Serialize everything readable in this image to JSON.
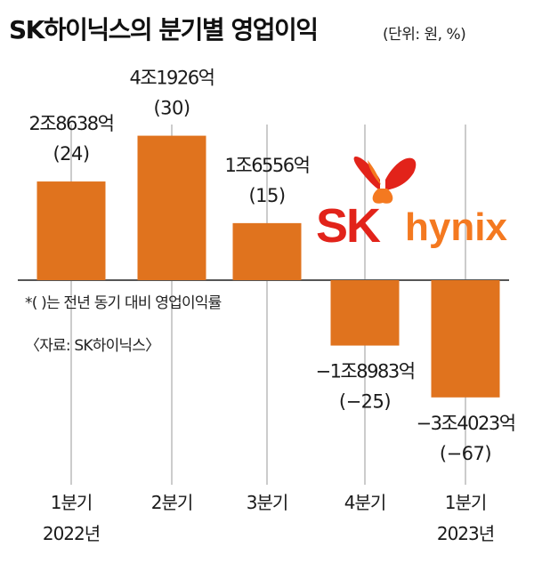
{
  "header": {
    "title": "SK하이닉스의 분기별 영업이익",
    "unit": "(단위: 원, %)"
  },
  "notes": {
    "footnote": "*(  )는 전년 동기 대비 영업이익률",
    "source": "〈자료: SK하이닉스〉"
  },
  "logo": {
    "text_sk": "SK",
    "text_hynix": "hynix",
    "colors": {
      "red": "#e2231a",
      "orange": "#f47920",
      "hynix_text": "#f47920"
    }
  },
  "colors": {
    "bar": "#e0731e",
    "axis": "#555555",
    "gridline": "#bbbbbb"
  },
  "chart_data": {
    "type": "bar",
    "title": "SK하이닉스의 분기별 영업이익",
    "unit": "원, %",
    "categories": [
      "1분기",
      "2분기",
      "3분기",
      "4분기",
      "1분기"
    ],
    "year_labels": [
      "2022년",
      "",
      "",
      "",
      "2023년"
    ],
    "values": [
      28638,
      41926,
      16556,
      -18983,
      -34023
    ],
    "value_labels": [
      "2조8638억",
      "4조1926억",
      "1조6556억",
      "−1조8983억",
      "−3조4023억"
    ],
    "margin_labels": [
      "(24)",
      "(30)",
      "(15)",
      "(−25)",
      "(−67)"
    ],
    "ylim": [
      -40000,
      50000
    ],
    "grid": true
  }
}
